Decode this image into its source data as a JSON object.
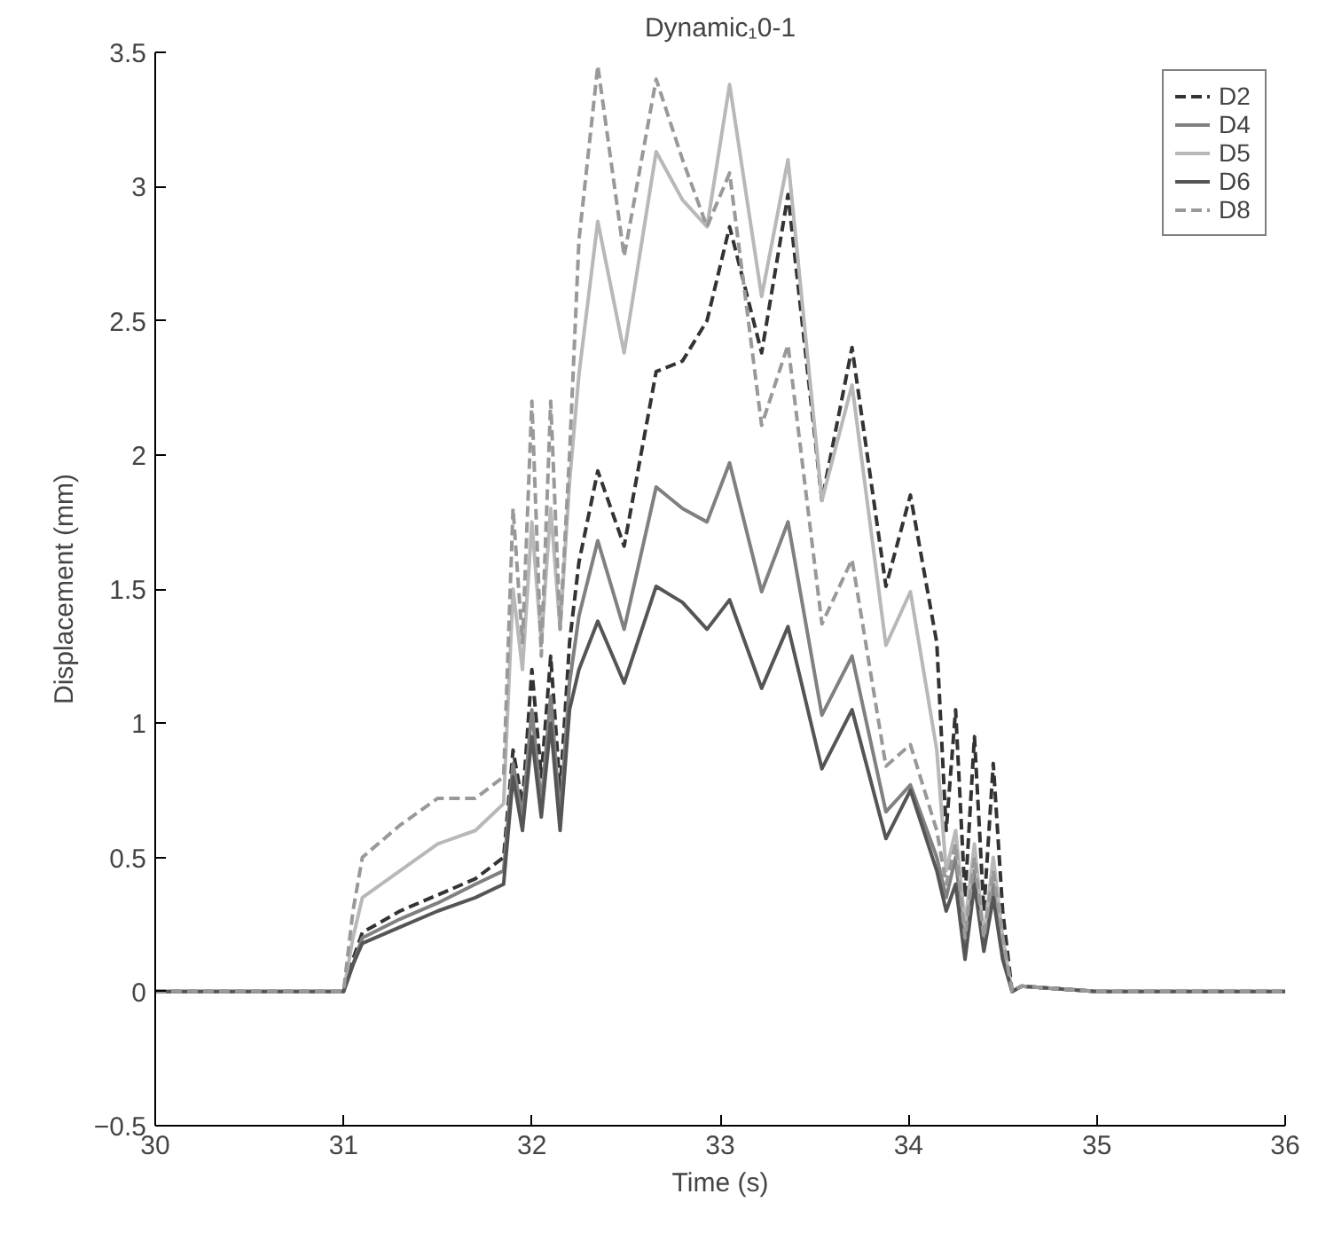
{
  "chart_data": {
    "type": "line",
    "title": "Dynamic₁0-1",
    "xlabel": "Time (s)",
    "ylabel": "Displacement (mm)",
    "x": [
      30,
      30.5,
      31.0,
      31.05,
      31.1,
      31.3,
      31.5,
      31.7,
      31.85,
      31.9,
      31.95,
      32.0,
      32.05,
      32.1,
      32.15,
      32.2,
      32.25,
      32.35,
      32.49,
      32.66,
      32.8,
      32.93,
      33.05,
      33.22,
      33.36,
      33.54,
      33.7,
      33.88,
      34.01,
      34.15,
      34.2,
      34.25,
      34.3,
      34.35,
      34.4,
      34.45,
      34.5,
      34.55,
      34.6,
      35,
      35.5,
      36
    ],
    "series": [
      {
        "name": "D2",
        "color": "#333333",
        "line_style": "dashed",
        "values": [
          0,
          0,
          0,
          0.12,
          0.22,
          0.3,
          0.36,
          0.42,
          0.5,
          0.9,
          0.7,
          1.2,
          0.8,
          1.25,
          0.75,
          1.3,
          1.6,
          1.94,
          1.66,
          2.31,
          2.35,
          2.5,
          2.85,
          2.38,
          2.97,
          1.83,
          2.4,
          1.51,
          1.85,
          1.3,
          0.6,
          1.05,
          0.35,
          0.95,
          0.3,
          0.85,
          0.3,
          0,
          0.02,
          0,
          0,
          0
        ]
      },
      {
        "name": "D4",
        "color": "#808080",
        "line_style": "solid",
        "values": [
          0,
          0,
          0,
          0.1,
          0.2,
          0.27,
          0.33,
          0.4,
          0.45,
          0.85,
          0.65,
          1.05,
          0.7,
          1.1,
          0.65,
          1.15,
          1.4,
          1.68,
          1.35,
          1.88,
          1.8,
          1.75,
          1.97,
          1.49,
          1.75,
          1.03,
          1.25,
          0.67,
          0.77,
          0.5,
          0.35,
          0.5,
          0.15,
          0.45,
          0.2,
          0.4,
          0.15,
          0,
          0.02,
          0,
          0,
          0
        ]
      },
      {
        "name": "D5",
        "color": "#b8b8b8",
        "line_style": "solid",
        "values": [
          0,
          0,
          0,
          0.2,
          0.35,
          0.45,
          0.55,
          0.6,
          0.7,
          1.5,
          1.2,
          1.75,
          1.3,
          1.8,
          1.35,
          1.9,
          2.3,
          2.87,
          2.38,
          3.13,
          2.95,
          2.85,
          3.38,
          2.59,
          3.1,
          1.83,
          2.26,
          1.29,
          1.49,
          0.9,
          0.45,
          0.6,
          0.25,
          0.55,
          0.2,
          0.5,
          0.2,
          0,
          0.02,
          0,
          0,
          0
        ]
      },
      {
        "name": "D6",
        "color": "#555555",
        "line_style": "solid",
        "values": [
          0,
          0,
          0,
          0.1,
          0.18,
          0.24,
          0.3,
          0.35,
          0.4,
          0.8,
          0.6,
          0.95,
          0.65,
          1.0,
          0.6,
          1.05,
          1.2,
          1.38,
          1.15,
          1.51,
          1.45,
          1.35,
          1.46,
          1.13,
          1.36,
          0.83,
          1.05,
          0.57,
          0.75,
          0.45,
          0.3,
          0.4,
          0.12,
          0.4,
          0.15,
          0.35,
          0.12,
          0,
          0.02,
          0,
          0,
          0
        ]
      },
      {
        "name": "D8",
        "color": "#999999",
        "line_style": "dashed",
        "values": [
          0,
          0,
          0,
          0.3,
          0.5,
          0.62,
          0.72,
          0.72,
          0.8,
          1.8,
          1.3,
          2.2,
          1.25,
          2.2,
          1.35,
          2.0,
          2.8,
          3.45,
          2.74,
          3.4,
          3.1,
          2.85,
          3.05,
          2.11,
          2.41,
          1.37,
          1.61,
          0.84,
          0.92,
          0.6,
          0.4,
          0.55,
          0.2,
          0.5,
          0.2,
          0.45,
          0.2,
          0,
          0.02,
          0,
          0,
          0
        ]
      }
    ],
    "xlim": [
      30,
      36
    ],
    "xticks": [
      30,
      31,
      32,
      33,
      34,
      35,
      36
    ],
    "ylim": [
      -0.5,
      3.5
    ],
    "yticks": [
      {
        "value": -0.5,
        "label": "−0.5"
      },
      0,
      0.5,
      1,
      1.5,
      2,
      2.5,
      3,
      3.5
    ],
    "grid": false,
    "legend": "top right",
    "marker": "none"
  }
}
